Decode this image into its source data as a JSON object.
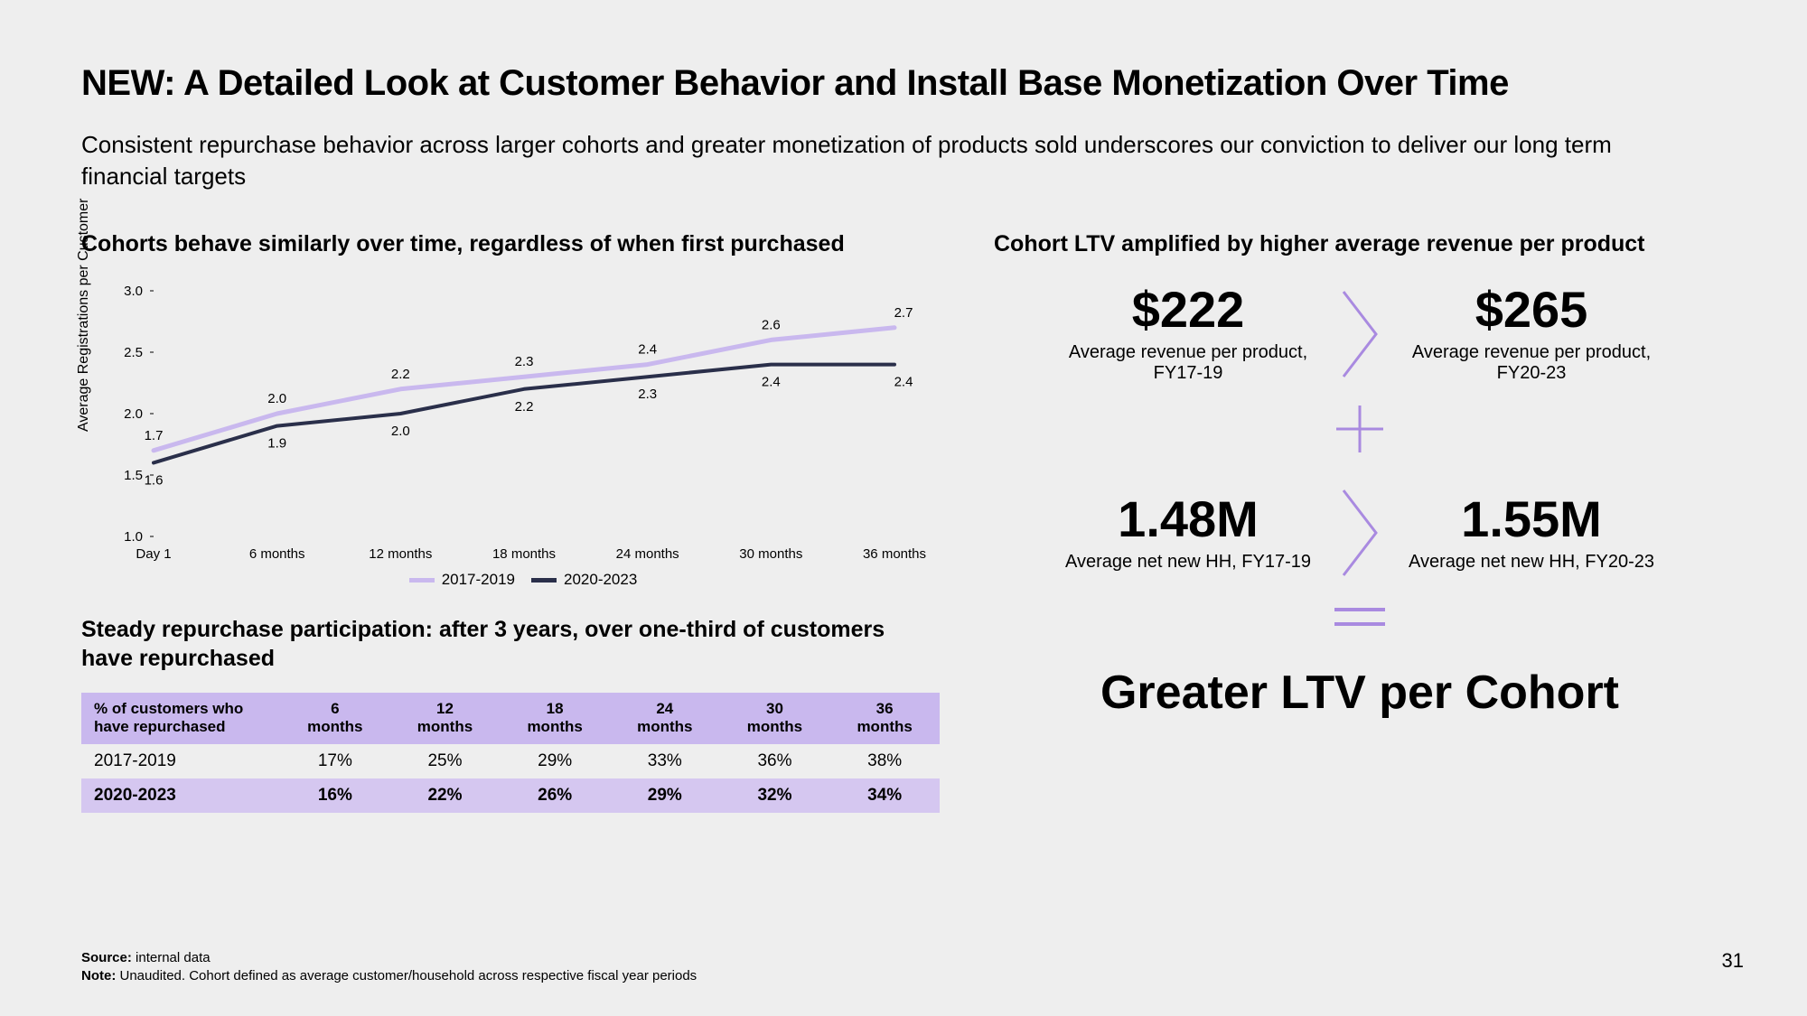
{
  "title": "NEW: A Detailed Look at Customer Behavior and Install Base Monetization Over Time",
  "subtitle": "Consistent repurchase behavior across larger cohorts and greater monetization of products sold underscores our conviction to deliver our long term financial targets",
  "left": {
    "chart_title": "Cohorts behave similarly over time, regardless of when first purchased",
    "table_title": "Steady repurchase participation: after 3 years, over one-third of customers have repurchased"
  },
  "right": {
    "title": "Cohort LTV amplified by higher average revenue per product",
    "conclusion": "Greater LTV per Cohort"
  },
  "chart": {
    "type": "line",
    "ylabel": "Average Registrations per Customer",
    "ylim": [
      1.0,
      3.0
    ],
    "yticks": [
      1.0,
      1.5,
      2.0,
      2.5,
      3.0
    ],
    "categories": [
      "Day 1",
      "6 months",
      "12 months",
      "18 months",
      "24 months",
      "30 months",
      "36 months"
    ],
    "series": [
      {
        "name": "2017-2019",
        "color": "#c9b8ee",
        "values": [
          1.7,
          2.0,
          2.2,
          2.3,
          2.4,
          2.6,
          2.7
        ],
        "stroke_width": 5
      },
      {
        "name": "2020-2023",
        "color": "#2a2f4a",
        "values": [
          1.6,
          1.9,
          2.0,
          2.2,
          2.3,
          2.4,
          2.4
        ],
        "stroke_width": 4
      }
    ],
    "label_fontsize": 15,
    "axis_fontsize": 15,
    "background": "#eeeeee",
    "tick_color": "#000000"
  },
  "table": {
    "header_label": "% of customers who have repurchased",
    "columns": [
      "6 months",
      "12 months",
      "18 months",
      "24 months",
      "30 months",
      "36 months"
    ],
    "rows": [
      {
        "label": "2017-2019",
        "highlight": false,
        "values": [
          "17%",
          "25%",
          "29%",
          "33%",
          "36%",
          "38%"
        ]
      },
      {
        "label": "2020-2023",
        "highlight": true,
        "values": [
          "16%",
          "22%",
          "26%",
          "29%",
          "32%",
          "34%"
        ]
      }
    ],
    "header_bg": "#c9b8ee",
    "highlight_bg": "#d5c7f0"
  },
  "metrics": {
    "row1": {
      "left": {
        "big": "$222",
        "sub": "Average revenue per product, FY17-19"
      },
      "right": {
        "big": "$265",
        "sub": "Average revenue per product, FY20-23"
      }
    },
    "row2": {
      "left": {
        "big": "1.48M",
        "sub": "Average net new HH, FY17-19"
      },
      "right": {
        "big": "1.55M",
        "sub": "Average net new HH, FY20-23"
      }
    },
    "chevron_color": "#a98ae0",
    "symbol_color": "#a98ae0"
  },
  "footer": {
    "source_label": "Source:",
    "source_text": "internal data",
    "note_label": "Note:",
    "note_text": "Unaudited.  Cohort defined as average customer/household across respective fiscal year periods"
  },
  "page_number": "31"
}
